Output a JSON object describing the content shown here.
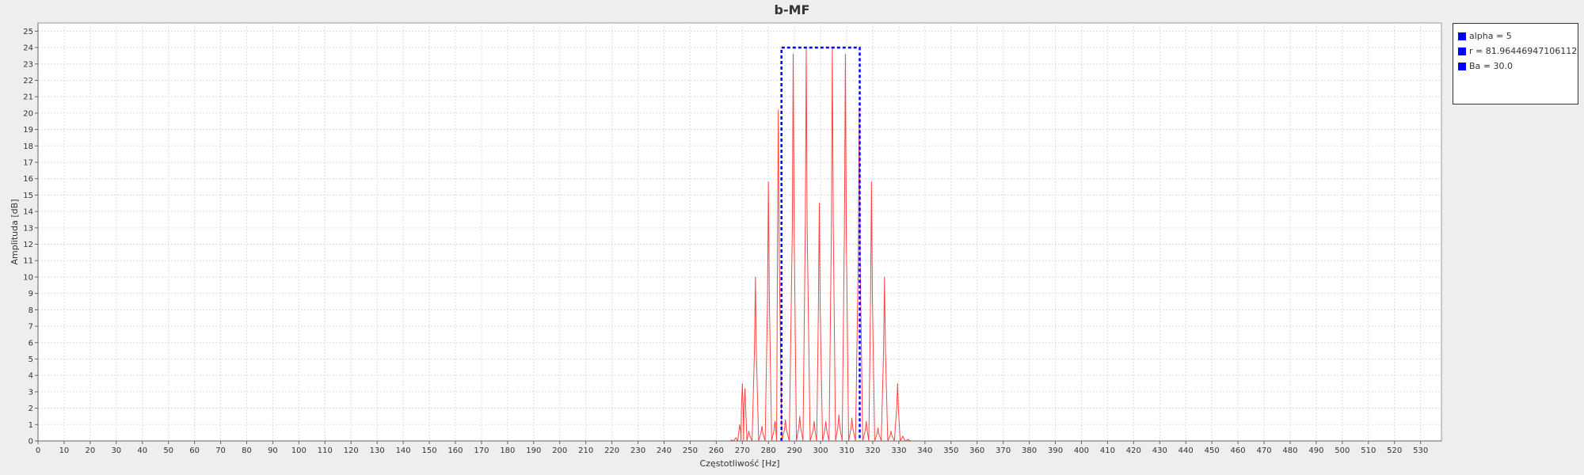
{
  "chart_data": {
    "type": "line",
    "title": "b-MF",
    "xlabel": "Częstotliwość [Hz]",
    "ylabel": "Amplituda [dB]",
    "xlim": [
      0,
      538
    ],
    "ylim": [
      0,
      25.5
    ],
    "x_ticks": [
      0,
      10,
      20,
      30,
      40,
      50,
      60,
      70,
      80,
      90,
      100,
      110,
      120,
      130,
      140,
      150,
      160,
      170,
      180,
      190,
      200,
      210,
      220,
      230,
      240,
      250,
      260,
      270,
      280,
      290,
      300,
      310,
      320,
      330,
      340,
      350,
      360,
      370,
      380,
      390,
      400,
      410,
      420,
      430,
      440,
      450,
      460,
      470,
      480,
      490,
      500,
      510,
      520,
      530
    ],
    "y_ticks": [
      0,
      1,
      2,
      3,
      4,
      5,
      6,
      7,
      8,
      9,
      10,
      11,
      12,
      13,
      14,
      15,
      16,
      17,
      18,
      19,
      20,
      21,
      22,
      23,
      24,
      25
    ],
    "grid": true,
    "legend_position": "right",
    "legend": [
      {
        "label": "alpha = 5",
        "color": "#0000ff"
      },
      {
        "label": "r = 81.96446947106112",
        "color": "#0000ff"
      },
      {
        "label": "Ba = 30.0",
        "color": "#0000ff"
      }
    ],
    "series": [
      {
        "style": "line",
        "color": "#ff4444",
        "peaks": [
          [
            266.0,
            0.05
          ],
          [
            267.5,
            0.2
          ],
          [
            269.0,
            1.0
          ],
          [
            270.0,
            3.5
          ],
          [
            271.0,
            3.2
          ],
          [
            272.5,
            0.6
          ],
          [
            275.0,
            10.0
          ],
          [
            277.5,
            0.9
          ],
          [
            280.0,
            15.8
          ],
          [
            282.5,
            1.2
          ],
          [
            283.8,
            20.2
          ],
          [
            286.5,
            1.3
          ],
          [
            289.5,
            23.6
          ],
          [
            292.0,
            1.5
          ],
          [
            294.5,
            24.0
          ],
          [
            297.5,
            1.2
          ],
          [
            299.5,
            14.5
          ],
          [
            302.0,
            1.2
          ],
          [
            304.5,
            24.0
          ],
          [
            307.0,
            1.6
          ],
          [
            309.5,
            23.6
          ],
          [
            312.0,
            1.4
          ],
          [
            314.8,
            20.3
          ],
          [
            317.5,
            1.2
          ],
          [
            319.5,
            15.8
          ],
          [
            322.0,
            0.8
          ],
          [
            324.5,
            10.0
          ],
          [
            327.0,
            0.6
          ],
          [
            329.5,
            3.5
          ],
          [
            331.5,
            0.3
          ],
          [
            333.5,
            0.1
          ]
        ]
      },
      {
        "style": "dashed",
        "color": "#0000ff",
        "x": [
          285,
          285,
          315,
          315
        ],
        "y": [
          0,
          24,
          24,
          0
        ]
      }
    ]
  }
}
